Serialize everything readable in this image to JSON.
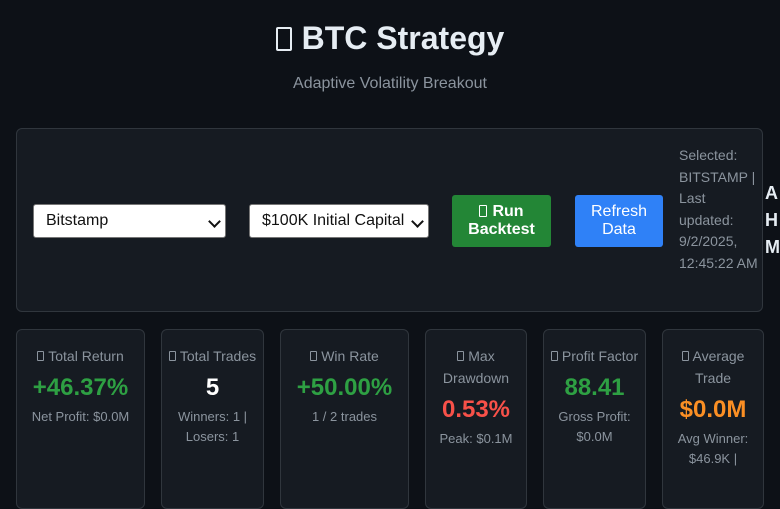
{
  "header": {
    "title": "BTC Strategy",
    "subtitle": "Adaptive Volatility Breakout"
  },
  "controls": {
    "exchange_select": "Bitstamp",
    "capital_select": "$100K Initial Capital",
    "run_label": "Run Backtest",
    "refresh_label": "Refresh Data",
    "status_text": "Selected: BITSTAMP | Last updated: 9/2/2025, 12:45:22 AM",
    "side_clip": [
      "A",
      "H",
      "M"
    ]
  },
  "metrics": [
    {
      "label": "Total Return",
      "value": "+46.37%",
      "sub": "Net Profit: $0.0M",
      "color": "#2ea043"
    },
    {
      "label": "Total Trades",
      "value": "5",
      "sub": "Winners: 1 | Losers: 1",
      "color": "#ffffff"
    },
    {
      "label": "Win Rate",
      "value": "+50.00%",
      "sub": "1 / 2 trades",
      "color": "#2ea043"
    },
    {
      "label": "Max Drawdown",
      "value": "0.53%",
      "sub": "Peak: $0.1M",
      "color": "#f85149"
    },
    {
      "label": "Profit Factor",
      "value": "88.41",
      "sub": "Gross Profit: $0.0M",
      "color": "#2ea043"
    },
    {
      "label": "Average Trade",
      "value": "$0.0M",
      "sub": "Avg Winner: $46.9K |",
      "color": "#fb8f24"
    }
  ]
}
